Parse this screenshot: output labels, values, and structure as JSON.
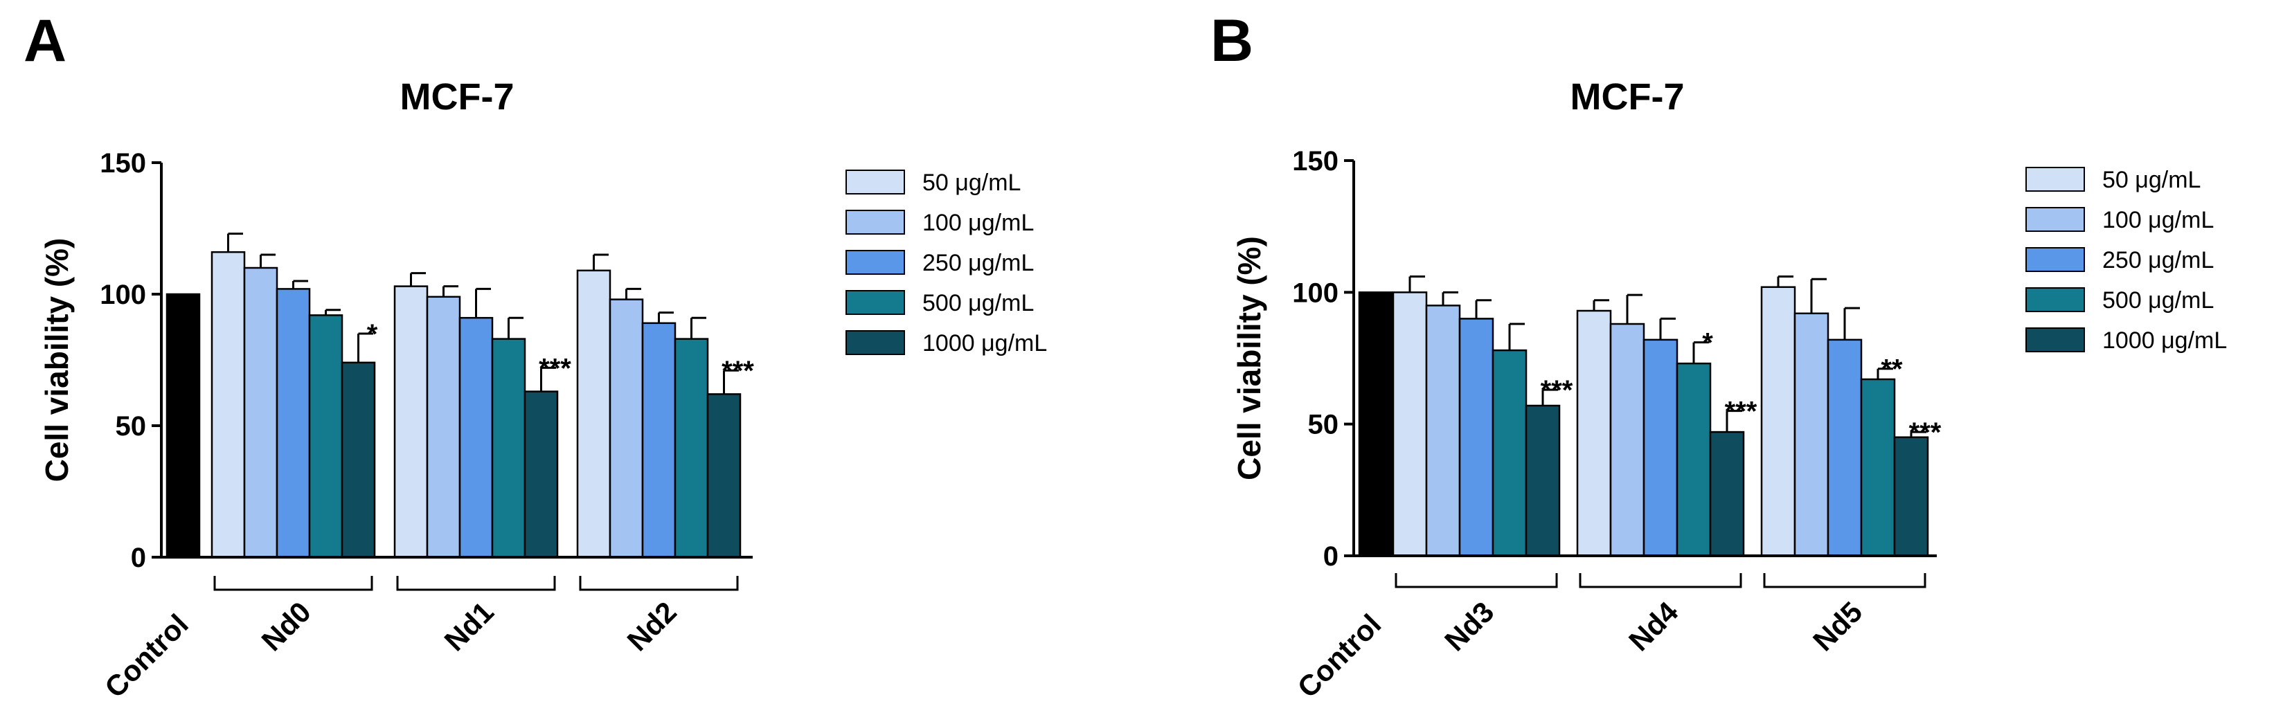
{
  "figure": {
    "panels": [
      "A",
      "B"
    ]
  },
  "chart_data": [
    {
      "panel": "A",
      "type": "bar",
      "title": "MCF-7",
      "ylabel": "Cell viability (%)",
      "xlabel": "",
      "ylim": [
        0,
        150
      ],
      "yticks": [
        0,
        50,
        100,
        150
      ],
      "control": {
        "label": "Control",
        "value": 100,
        "error": 0,
        "color": "#000000"
      },
      "groups": [
        "Nd0",
        "Nd1",
        "Nd2"
      ],
      "series": [
        {
          "name": "50 μg/mL",
          "color": "#cfe0f7",
          "values": [
            116,
            103,
            109
          ],
          "errors": [
            7,
            5,
            6
          ],
          "sig": [
            "",
            "",
            ""
          ]
        },
        {
          "name": "100 μg/mL",
          "color": "#a3c3f2",
          "values": [
            110,
            99,
            98
          ],
          "errors": [
            5,
            4,
            4
          ],
          "sig": [
            "",
            "",
            ""
          ]
        },
        {
          "name": "250 μg/mL",
          "color": "#5b97e8",
          "values": [
            102,
            91,
            89
          ],
          "errors": [
            3,
            11,
            4
          ],
          "sig": [
            "",
            "",
            ""
          ]
        },
        {
          "name": "500 μg/mL",
          "color": "#147b8e",
          "values": [
            92,
            83,
            83
          ],
          "errors": [
            2,
            8,
            8
          ],
          "sig": [
            "",
            "",
            ""
          ]
        },
        {
          "name": "1000 μg/mL",
          "color": "#0f4c5e",
          "values": [
            74,
            63,
            62
          ],
          "errors": [
            11,
            9,
            9
          ],
          "sig": [
            "*",
            "***",
            "***"
          ]
        }
      ]
    },
    {
      "panel": "B",
      "type": "bar",
      "title": "MCF-7",
      "ylabel": "Cell viability (%)",
      "xlabel": "",
      "ylim": [
        0,
        150
      ],
      "yticks": [
        0,
        50,
        100,
        150
      ],
      "control": {
        "label": "Control",
        "value": 100,
        "error": 0,
        "color": "#000000"
      },
      "groups": [
        "Nd3",
        "Nd4",
        "Nd5"
      ],
      "series": [
        {
          "name": "50 μg/mL",
          "color": "#cfe0f7",
          "values": [
            100,
            93,
            102
          ],
          "errors": [
            6,
            4,
            4
          ],
          "sig": [
            "",
            "",
            ""
          ]
        },
        {
          "name": "100 μg/mL",
          "color": "#a3c3f2",
          "values": [
            95,
            88,
            92
          ],
          "errors": [
            5,
            11,
            13
          ],
          "sig": [
            "",
            "",
            ""
          ]
        },
        {
          "name": "250 μg/mL",
          "color": "#5b97e8",
          "values": [
            90,
            82,
            82
          ],
          "errors": [
            7,
            8,
            12
          ],
          "sig": [
            "",
            "",
            ""
          ]
        },
        {
          "name": "500 μg/mL",
          "color": "#147b8e",
          "values": [
            78,
            73,
            67
          ],
          "errors": [
            10,
            8,
            4
          ],
          "sig": [
            "",
            "*",
            "**"
          ]
        },
        {
          "name": "1000 μg/mL",
          "color": "#0f4c5e",
          "values": [
            57,
            47,
            45
          ],
          "errors": [
            6,
            8,
            2
          ],
          "sig": [
            "***",
            "***",
            "***"
          ]
        }
      ]
    }
  ]
}
